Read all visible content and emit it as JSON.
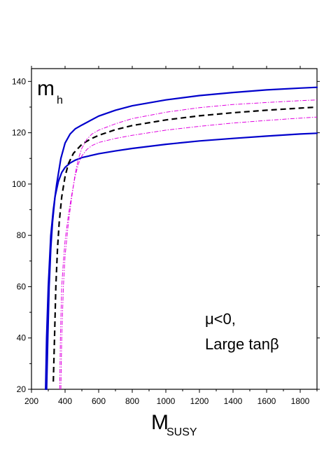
{
  "chart_data": {
    "type": "line",
    "title": "",
    "ylabel_main": "m",
    "ylabel_sub": "h",
    "xlabel_main": "M",
    "xlabel_sub": "SUSY",
    "annotation_line1": "μ<0,",
    "annotation_line2": "Large tanβ",
    "xlim": [
      200,
      1900
    ],
    "ylim": [
      20,
      145
    ],
    "x_ticks": [
      200,
      400,
      600,
      800,
      1000,
      1200,
      1400,
      1600,
      1800
    ],
    "x_tick_labels": [
      "200",
      "400",
      "600",
      "800",
      "1000",
      "1200",
      "1400",
      "1600",
      "1800"
    ],
    "y_ticks": [
      20,
      40,
      60,
      80,
      100,
      120,
      140
    ],
    "y_tick_labels": [
      "20",
      "40",
      "60",
      "80",
      "100",
      "120",
      "140"
    ],
    "grid": false,
    "series": [
      {
        "id": "blue-upper",
        "style": "solid",
        "color": "#0000cc",
        "x": [
          284,
          290,
          300,
          315,
          330,
          350,
          375,
          400,
          430,
          460,
          500,
          600,
          700,
          800,
          1000,
          1200,
          1400,
          1600,
          1800,
          1900
        ],
        "y": [
          20,
          40,
          60,
          80,
          90,
          100,
          110,
          116,
          119.5,
          121.5,
          123,
          126.5,
          128.8,
          130.5,
          132.8,
          134.5,
          135.7,
          136.7,
          137.4,
          137.7
        ]
      },
      {
        "id": "blue-lower",
        "style": "solid",
        "color": "#0000cc",
        "x": [
          290,
          297,
          305,
          315,
          325,
          340,
          360,
          380,
          400,
          430,
          460,
          500,
          600,
          700,
          800,
          1000,
          1200,
          1400,
          1600,
          1800,
          1900
        ],
        "y": [
          20,
          40,
          60,
          75,
          85,
          95,
          101,
          104.5,
          106.5,
          108.2,
          109.3,
          110.3,
          111.8,
          112.9,
          113.9,
          115.5,
          116.8,
          117.8,
          118.7,
          119.5,
          119.8
        ]
      },
      {
        "id": "black-dashed",
        "style": "dashed",
        "color": "#000000",
        "x": [
          330,
          337,
          345,
          355,
          365,
          380,
          400,
          420,
          450,
          500,
          550,
          600,
          700,
          800,
          1000,
          1200,
          1400,
          1600,
          1800,
          1900
        ],
        "y": [
          23,
          40,
          60,
          75,
          85,
          95,
          103,
          108,
          112,
          115.5,
          117.5,
          119,
          121.2,
          122.8,
          125,
          126.6,
          127.8,
          128.8,
          129.6,
          130
        ]
      },
      {
        "id": "magenta-outer",
        "style": "dashdot",
        "color": "#e000e0",
        "x": [
          375,
          380,
          390,
          400,
          420,
          440,
          460,
          480,
          500,
          530,
          560,
          600,
          700,
          800,
          1000,
          1200,
          1400,
          1600,
          1800,
          1900
        ],
        "y": [
          20,
          40,
          60,
          72,
          85,
          95,
          104,
          110,
          114,
          117.5,
          119.5,
          121,
          123.5,
          125.5,
          128,
          129.8,
          131,
          131.8,
          132.5,
          132.8
        ]
      },
      {
        "id": "magenta-inner",
        "style": "dashdot",
        "color": "#e000e0",
        "x": [
          368,
          372,
          380,
          390,
          400,
          420,
          440,
          460,
          480,
          500,
          530,
          560,
          600,
          700,
          800,
          1000,
          1200,
          1400,
          1600,
          1800,
          1900
        ],
        "y": [
          20,
          40,
          60,
          70,
          78,
          88,
          96,
          103,
          108,
          111,
          113.5,
          115,
          116.2,
          117.8,
          119,
          121,
          122.5,
          123.8,
          124.8,
          125.7,
          126.1
        ]
      }
    ]
  }
}
